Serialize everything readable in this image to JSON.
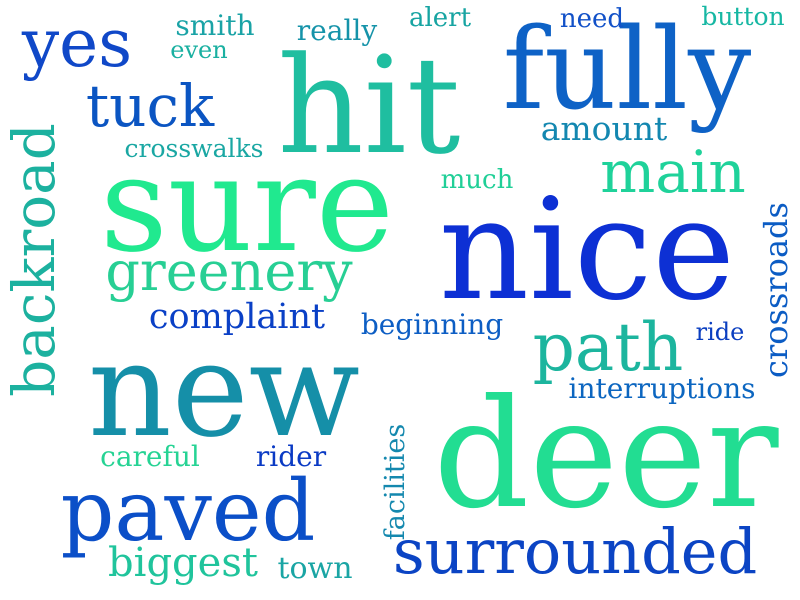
{
  "words": [
    {
      "text": "hit",
      "color": "#1fbea0"
    },
    {
      "text": "fully",
      "color": "#0e62c6"
    },
    {
      "text": "yes",
      "color": "#1048c8"
    },
    {
      "text": "smith",
      "color": "#1aa3a6"
    },
    {
      "text": "even",
      "color": "#1ab0a1"
    },
    {
      "text": "really",
      "color": "#1593a9"
    },
    {
      "text": "alert",
      "color": "#17a4a2"
    },
    {
      "text": "need",
      "color": "#1251c8"
    },
    {
      "text": "button",
      "color": "#16b7a3"
    },
    {
      "text": "tuck",
      "color": "#0b55c2"
    },
    {
      "text": "amount",
      "color": "#1387b0"
    },
    {
      "text": "crosswalks",
      "color": "#1aa7a3"
    },
    {
      "text": "much",
      "color": "#20cf97"
    },
    {
      "text": "main",
      "color": "#1fd29a"
    },
    {
      "text": "sure",
      "color": "#20e98f"
    },
    {
      "text": "nice",
      "color": "#0d30d4"
    },
    {
      "text": "crossroads",
      "color": "#0b5cc4"
    },
    {
      "text": "backroad",
      "color": "#1cb19f"
    },
    {
      "text": "greenery",
      "color": "#27cf94"
    },
    {
      "text": "complaint",
      "color": "#0a40c6"
    },
    {
      "text": "beginning",
      "color": "#0d5ec4"
    },
    {
      "text": "path",
      "color": "#1cb59e"
    },
    {
      "text": "ride",
      "color": "#0a3ec0"
    },
    {
      "text": "new",
      "color": "#158fa8"
    },
    {
      "text": "interruptions",
      "color": "#0c66c0"
    },
    {
      "text": "deer",
      "color": "#22dd92"
    },
    {
      "text": "careful",
      "color": "#26d394"
    },
    {
      "text": "rider",
      "color": "#0a3ac4"
    },
    {
      "text": "facilities",
      "color": "#1488ae"
    },
    {
      "text": "paved",
      "color": "#0b4fc8"
    },
    {
      "text": "biggest",
      "color": "#20c49c"
    },
    {
      "text": "town",
      "color": "#1aa5a4"
    },
    {
      "text": "surrounded",
      "color": "#0b44c4"
    }
  ]
}
